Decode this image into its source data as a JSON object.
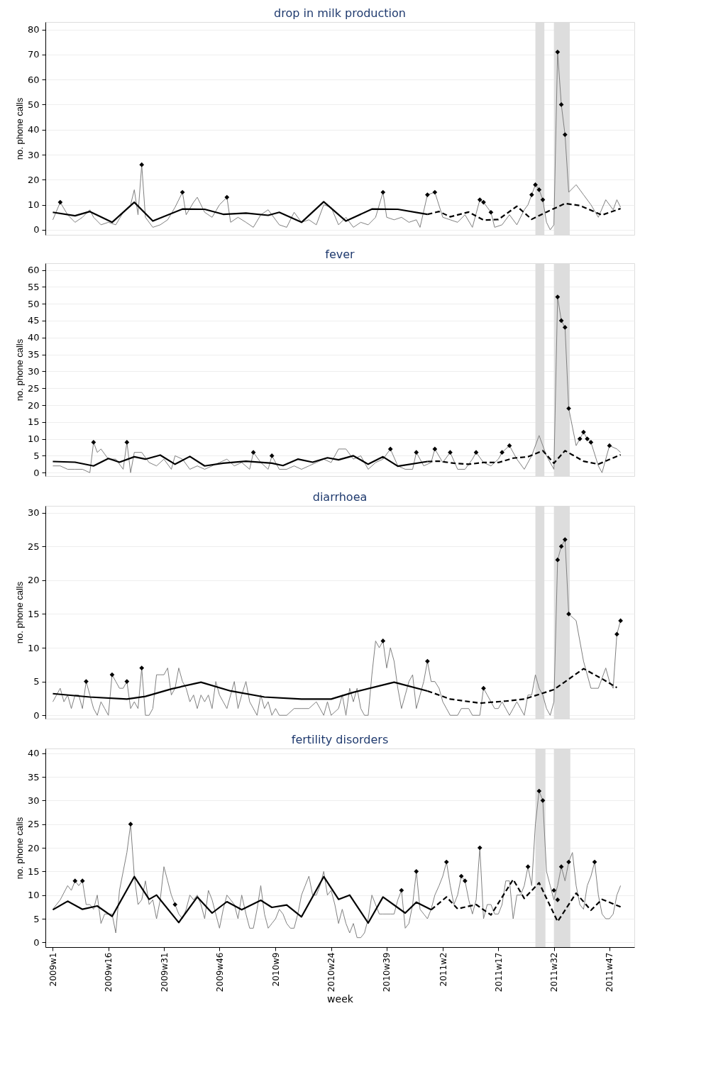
{
  "chart_data": [
    {
      "type": "line",
      "title": "drop in milk production",
      "ylabel": "no. phone calls",
      "tick_labels": "y",
      "grid": "y",
      "xlim": [
        "2008-12-18",
        "2012-01-05"
      ],
      "ylim": [
        -2,
        83
      ],
      "yticks": [
        0,
        10,
        20,
        30,
        40,
        50,
        60,
        70,
        80
      ],
      "bands": [
        {
          "axis": "x",
          "from": "2011-07-02",
          "to": "2011-07-19",
          "color": "#dddddd"
        },
        {
          "axis": "x",
          "from": "2011-08-06",
          "to": "2011-09-05",
          "color": "#dddddd"
        }
      ],
      "series": [
        {
          "color": "#808080",
          "line_style": "solid",
          "x": [
            "2009-01-01",
            "2009-01-15",
            "2009-01-29",
            "2009-02-12",
            "2009-02-26",
            "2009-03-12",
            "2009-03-19",
            "2009-04-02",
            "2009-04-16",
            "2009-04-30",
            "2009-05-14",
            "2009-05-28",
            "2009-06-04",
            "2009-06-11",
            "2009-06-18",
            "2009-06-25",
            "2009-07-09",
            "2009-07-23",
            "2009-08-06",
            "2009-08-20",
            "2009-09-03",
            "2009-09-10",
            "2009-09-24",
            "2009-10-01",
            "2009-10-15",
            "2009-10-29",
            "2009-11-12",
            "2009-11-26",
            "2009-12-03",
            "2009-12-17",
            "2010-01-01",
            "2010-01-15",
            "2010-01-29",
            "2010-02-12",
            "2010-02-19",
            "2010-03-05",
            "2010-03-19",
            "2010-04-02",
            "2010-04-16",
            "2010-04-30",
            "2010-05-14",
            "2010-05-28",
            "2010-06-11",
            "2010-06-25",
            "2010-07-09",
            "2010-07-23",
            "2010-08-06",
            "2010-08-20",
            "2010-09-03",
            "2010-09-17",
            "2010-09-24",
            "2010-10-08",
            "2010-10-22",
            "2010-11-05",
            "2010-11-19",
            "2010-11-26",
            "2010-12-10",
            "2010-12-24",
            "2011-01-08",
            "2011-01-22",
            "2011-02-05",
            "2011-02-19",
            "2011-03-05",
            "2011-03-19",
            "2011-03-26",
            "2011-04-09",
            "2011-04-16",
            "2011-04-30",
            "2011-05-14",
            "2011-05-28",
            "2011-06-11",
            "2011-06-18",
            "2011-06-25",
            "2011-07-02",
            "2011-07-09",
            "2011-07-16",
            "2011-07-23",
            "2011-07-30",
            "2011-08-06",
            "2011-08-13",
            "2011-08-20",
            "2011-08-27",
            "2011-09-03",
            "2011-09-17",
            "2011-10-01",
            "2011-10-15",
            "2011-10-29",
            "2011-11-12",
            "2011-11-26",
            "2011-12-03",
            "2011-12-10"
          ],
          "values": [
            4,
            11,
            6,
            3,
            5,
            8,
            5,
            2,
            3,
            2,
            7,
            10,
            16,
            6,
            26,
            5,
            1,
            2,
            4,
            9,
            15,
            6,
            11,
            13,
            7,
            5,
            10,
            13,
            3,
            5,
            3,
            1,
            6,
            8,
            6,
            2,
            1,
            7,
            3,
            4,
            2,
            10,
            9,
            2,
            5,
            1,
            3,
            2,
            5,
            15,
            5,
            4,
            5,
            3,
            4,
            1,
            14,
            15,
            5,
            4,
            3,
            6,
            1,
            12,
            11,
            7,
            1,
            2,
            6,
            2,
            8,
            10,
            14,
            18,
            16,
            12,
            3,
            0,
            2,
            71,
            50,
            38,
            15,
            18,
            14,
            10,
            5,
            12,
            8,
            12,
            9
          ]
        },
        {
          "color": "#000000",
          "line_style": "solid",
          "x": [
            "2009-01-01",
            "2009-02-12",
            "2009-03-12",
            "2009-04-23",
            "2009-06-04",
            "2009-07-09",
            "2009-09-03",
            "2009-10-15",
            "2009-11-19",
            "2010-01-01",
            "2010-02-12",
            "2010-03-05",
            "2010-04-16",
            "2010-05-28",
            "2010-07-09",
            "2010-08-27",
            "2010-10-15",
            "2010-12-10"
          ],
          "values": [
            7,
            5.6,
            7.3,
            3,
            11,
            3.5,
            8.3,
            8.2,
            6.2,
            6.7,
            5.8,
            7,
            3,
            11.2,
            3.5,
            8.3,
            8.2,
            6.2
          ]
        },
        {
          "color": "#000000",
          "line_style": "dashed",
          "x": [
            "2010-12-10",
            "2011-01-01",
            "2011-01-22",
            "2011-02-26",
            "2011-03-26",
            "2011-04-23",
            "2011-05-28",
            "2011-06-25",
            "2011-07-23",
            "2011-08-27",
            "2011-09-24",
            "2011-11-05",
            "2011-12-10"
          ],
          "values": [
            6.2,
            7.3,
            5.2,
            7.1,
            3.9,
            4.1,
            9.4,
            4.2,
            7.1,
            10.5,
            9.7,
            5.9,
            8.5
          ]
        },
        {
          "type": "scatter",
          "color": "#000000",
          "marker": "diamond",
          "x": [
            "2009-01-15",
            "2009-06-18",
            "2009-09-03",
            "2009-11-26",
            "2010-09-17",
            "2010-12-10",
            "2010-12-24",
            "2011-03-19",
            "2011-03-26",
            "2011-04-09",
            "2011-06-25",
            "2011-07-02",
            "2011-07-09",
            "2011-07-16",
            "2011-08-13",
            "2011-08-20",
            "2011-08-27"
          ],
          "values": [
            11,
            26,
            15,
            13,
            15,
            14,
            15,
            12,
            11,
            7,
            14,
            18,
            16,
            12,
            71,
            50,
            38
          ]
        }
      ]
    },
    {
      "type": "line",
      "title": "fever",
      "ylabel": "no. phone calls",
      "tick_labels": "y",
      "grid": "y",
      "xlim": [
        "2008-12-18",
        "2012-01-05"
      ],
      "ylim": [
        -1,
        62
      ],
      "yticks": [
        0,
        5,
        10,
        15,
        20,
        25,
        30,
        35,
        40,
        45,
        50,
        55,
        60
      ],
      "bands": [
        {
          "axis": "x",
          "from": "2011-07-02",
          "to": "2011-07-19",
          "color": "#dddddd"
        },
        {
          "axis": "x",
          "from": "2011-08-06",
          "to": "2011-09-05",
          "color": "#dddddd"
        }
      ],
      "series": [
        {
          "color": "#808080",
          "line_style": "solid",
          "x": [
            "2009-01-01",
            "2009-01-15",
            "2009-01-29",
            "2009-02-12",
            "2009-02-26",
            "2009-03-12",
            "2009-03-19",
            "2009-03-26",
            "2009-04-02",
            "2009-04-16",
            "2009-04-30",
            "2009-05-14",
            "2009-05-21",
            "2009-05-28",
            "2009-06-04",
            "2009-06-18",
            "2009-07-02",
            "2009-07-16",
            "2009-07-30",
            "2009-08-13",
            "2009-08-20",
            "2009-09-03",
            "2009-09-17",
            "2009-10-01",
            "2009-10-15",
            "2009-10-29",
            "2009-11-12",
            "2009-11-26",
            "2009-12-10",
            "2009-12-24",
            "2010-01-08",
            "2010-01-15",
            "2010-01-29",
            "2010-02-12",
            "2010-02-19",
            "2010-03-05",
            "2010-03-19",
            "2010-04-02",
            "2010-04-16",
            "2010-04-30",
            "2010-05-14",
            "2010-05-28",
            "2010-06-11",
            "2010-06-25",
            "2010-07-09",
            "2010-07-23",
            "2010-08-06",
            "2010-08-20",
            "2010-09-03",
            "2010-09-17",
            "2010-10-01",
            "2010-10-15",
            "2010-10-29",
            "2010-11-12",
            "2010-11-19",
            "2010-12-03",
            "2010-12-17",
            "2010-12-24",
            "2011-01-08",
            "2011-01-22",
            "2011-02-05",
            "2011-02-19",
            "2011-03-05",
            "2011-03-12",
            "2011-03-26",
            "2011-04-09",
            "2011-04-23",
            "2011-04-30",
            "2011-05-14",
            "2011-05-28",
            "2011-06-11",
            "2011-06-25",
            "2011-07-09",
            "2011-07-23",
            "2011-08-06",
            "2011-08-13",
            "2011-08-20",
            "2011-08-27",
            "2011-09-03",
            "2011-09-17",
            "2011-09-24",
            "2011-10-01",
            "2011-10-08",
            "2011-10-15",
            "2011-10-29",
            "2011-11-05",
            "2011-11-19",
            "2011-12-03",
            "2011-12-10"
          ],
          "values": [
            2,
            2,
            1,
            1,
            1,
            0,
            9,
            6,
            7,
            4,
            4,
            1,
            9,
            0,
            6,
            6,
            3,
            2,
            4,
            1,
            5,
            4,
            1,
            2,
            1,
            2,
            3,
            4,
            2,
            3,
            1,
            6,
            3,
            1,
            5,
            1,
            1,
            2,
            1,
            2,
            3,
            4,
            3,
            7,
            7,
            4,
            5,
            1,
            3,
            4,
            7,
            2,
            1,
            1,
            6,
            2,
            3,
            7,
            3,
            6,
            1,
            1,
            4,
            6,
            3,
            2,
            4,
            6,
            8,
            4,
            1,
            5,
            11,
            5,
            1,
            52,
            45,
            43,
            19,
            8,
            10,
            12,
            10,
            9,
            2,
            0,
            8,
            7,
            6
          ]
        },
        {
          "color": "#000000",
          "line_style": "solid",
          "x": [
            "2009-01-01",
            "2009-02-12",
            "2009-03-19",
            "2009-04-16",
            "2009-05-07",
            "2009-06-04",
            "2009-06-25",
            "2009-07-23",
            "2009-08-20",
            "2009-09-17",
            "2009-10-15",
            "2009-11-19",
            "2010-01-01",
            "2010-02-19",
            "2010-03-12",
            "2010-04-09",
            "2010-05-07",
            "2010-06-04",
            "2010-06-25",
            "2010-07-23",
            "2010-08-20",
            "2010-09-17",
            "2010-10-15",
            "2010-12-10"
          ],
          "values": [
            3.3,
            3.1,
            2,
            4.2,
            3.1,
            4.7,
            4,
            5.2,
            2.5,
            4.8,
            2,
            2.8,
            3.4,
            2.8,
            2.1,
            4,
            3.1,
            4.4,
            3.8,
            5,
            2.5,
            4.7,
            1.9,
            3.3
          ]
        },
        {
          "color": "#000000",
          "line_style": "dashed",
          "x": [
            "2010-12-10",
            "2011-01-01",
            "2011-01-29",
            "2011-02-26",
            "2011-03-26",
            "2011-04-23",
            "2011-05-21",
            "2011-06-18",
            "2011-07-16",
            "2011-08-06",
            "2011-08-27",
            "2011-10-01",
            "2011-10-29",
            "2011-12-10"
          ],
          "values": [
            3.3,
            3.4,
            2.8,
            2.5,
            3,
            3,
            4.3,
            4.7,
            6.5,
            2.8,
            6.5,
            3.4,
            2.5,
            5.3
          ]
        },
        {
          "type": "scatter",
          "color": "#000000",
          "marker": "diamond",
          "x": [
            "2009-03-19",
            "2009-05-21",
            "2010-01-15",
            "2010-02-19",
            "2010-10-01",
            "2010-11-19",
            "2010-12-24",
            "2011-01-22",
            "2011-03-12",
            "2011-04-30",
            "2011-05-14",
            "2011-08-13",
            "2011-08-20",
            "2011-08-27",
            "2011-09-03",
            "2011-09-24",
            "2011-10-01",
            "2011-10-08",
            "2011-10-15",
            "2011-11-19"
          ],
          "values": [
            9,
            9,
            6,
            5,
            7,
            6,
            7,
            6,
            6,
            6,
            8,
            52,
            45,
            43,
            19,
            10,
            12,
            10,
            9,
            8
          ]
        }
      ]
    },
    {
      "type": "line",
      "title": "diarrhoea",
      "ylabel": "no. phone calls",
      "tick_labels": "y",
      "grid": "y",
      "xlim": [
        "2008-12-18",
        "2012-01-05"
      ],
      "ylim": [
        -0.5,
        31
      ],
      "yticks": [
        0,
        5,
        10,
        15,
        20,
        25,
        30
      ],
      "bands": [
        {
          "axis": "x",
          "from": "2011-07-02",
          "to": "2011-07-19",
          "color": "#dddddd"
        },
        {
          "axis": "x",
          "from": "2011-08-06",
          "to": "2011-09-05",
          "color": "#dddddd"
        }
      ],
      "series": [
        {
          "color": "#808080",
          "line_style": "solid",
          "x": [
            "2009-01-01",
            "2009-01-08",
            "2009-01-15",
            "2009-01-22",
            "2009-01-29",
            "2009-02-05",
            "2009-02-12",
            "2009-02-19",
            "2009-02-26",
            "2009-03-05",
            "2009-03-12",
            "2009-03-19",
            "2009-03-26",
            "2009-04-02",
            "2009-04-09",
            "2009-04-16",
            "2009-04-23",
            "2009-04-30",
            "2009-05-07",
            "2009-05-14",
            "2009-05-21",
            "2009-05-28",
            "2009-06-04",
            "2009-06-11",
            "2009-06-18",
            "2009-06-25",
            "2009-07-02",
            "2009-07-09",
            "2009-07-16",
            "2009-07-23",
            "2009-07-30",
            "2009-08-06",
            "2009-08-13",
            "2009-08-20",
            "2009-08-27",
            "2009-09-03",
            "2009-09-10",
            "2009-09-17",
            "2009-09-24",
            "2009-10-01",
            "2009-10-08",
            "2009-10-15",
            "2009-10-22",
            "2009-10-29",
            "2009-11-05",
            "2009-11-12",
            "2009-11-19",
            "2009-11-26",
            "2009-12-03",
            "2009-12-10",
            "2009-12-17",
            "2009-12-24",
            "2010-01-01",
            "2010-01-08",
            "2010-01-15",
            "2010-01-22",
            "2010-01-29",
            "2010-02-05",
            "2010-02-12",
            "2010-02-19",
            "2010-02-26",
            "2010-03-05",
            "2010-03-19",
            "2010-04-02",
            "2010-04-16",
            "2010-04-30",
            "2010-05-14",
            "2010-05-21",
            "2010-05-28",
            "2010-06-04",
            "2010-06-11",
            "2010-06-25",
            "2010-07-02",
            "2010-07-09",
            "2010-07-16",
            "2010-07-23",
            "2010-07-30",
            "2010-08-06",
            "2010-08-13",
            "2010-08-20",
            "2010-08-27",
            "2010-09-03",
            "2010-09-10",
            "2010-09-17",
            "2010-09-24",
            "2010-10-01",
            "2010-10-08",
            "2010-10-15",
            "2010-10-22",
            "2010-10-29",
            "2010-11-05",
            "2010-11-12",
            "2010-11-19",
            "2010-11-26",
            "2010-12-03",
            "2010-12-10",
            "2010-12-17",
            "2010-12-24",
            "2011-01-01",
            "2011-01-08",
            "2011-01-15",
            "2011-01-22",
            "2011-02-05",
            "2011-02-12",
            "2011-02-26",
            "2011-03-05",
            "2011-03-19",
            "2011-03-26",
            "2011-04-02",
            "2011-04-09",
            "2011-04-16",
            "2011-04-23",
            "2011-04-30",
            "2011-05-07",
            "2011-05-14",
            "2011-05-21",
            "2011-05-28",
            "2011-06-04",
            "2011-06-11",
            "2011-06-18",
            "2011-06-25",
            "2011-07-02",
            "2011-07-09",
            "2011-07-16",
            "2011-07-23",
            "2011-07-30",
            "2011-08-06",
            "2011-08-13",
            "2011-08-20",
            "2011-08-27",
            "2011-09-03",
            "2011-09-17",
            "2011-10-01",
            "2011-10-15",
            "2011-10-29",
            "2011-11-12",
            "2011-11-19",
            "2011-11-26",
            "2011-12-03",
            "2011-12-10"
          ],
          "values": [
            2,
            3,
            4,
            2,
            3,
            1,
            3,
            3,
            1,
            5,
            3,
            1,
            0,
            2,
            1,
            0,
            6,
            5,
            4,
            4,
            5,
            1,
            2,
            1,
            7,
            0,
            0,
            1,
            6,
            6,
            6,
            7,
            3,
            4,
            7,
            5,
            4,
            2,
            3,
            1,
            3,
            2,
            3,
            1,
            5,
            3,
            2,
            1,
            3,
            5,
            1,
            3,
            5,
            2,
            1,
            0,
            3,
            1,
            2,
            0,
            1,
            0,
            0,
            1,
            1,
            1,
            2,
            1,
            0,
            2,
            0,
            1,
            3,
            0,
            4,
            2,
            4,
            1,
            0,
            0,
            6,
            11,
            10,
            11,
            7,
            10,
            8,
            4,
            1,
            3,
            5,
            6,
            1,
            3,
            5,
            8,
            5,
            5,
            4,
            2,
            1,
            0,
            0,
            1,
            1,
            0,
            0,
            4,
            3,
            2,
            1,
            1,
            2,
            1,
            0,
            1,
            2,
            1,
            0,
            3,
            3,
            6,
            4,
            3,
            1,
            0,
            2,
            23,
            25,
            26,
            15,
            14,
            8,
            4,
            4,
            7,
            5,
            4,
            12,
            14
          ]
        },
        {
          "color": "#000000",
          "line_style": "solid",
          "x": [
            "2009-01-01",
            "2009-03-12",
            "2009-05-21",
            "2009-06-25",
            "2009-08-13",
            "2009-10-08",
            "2009-12-03",
            "2010-02-05",
            "2010-04-16",
            "2010-06-11",
            "2010-07-23",
            "2010-10-08",
            "2010-12-10"
          ],
          "values": [
            3.2,
            2.7,
            2.4,
            2.8,
            3.9,
            4.9,
            3.6,
            2.7,
            2.4,
            2.4,
            3.4,
            4.9,
            3.6
          ]
        },
        {
          "color": "#000000",
          "line_style": "dashed",
          "x": [
            "2010-12-10",
            "2011-01-22",
            "2011-03-19",
            "2011-05-07",
            "2011-06-11",
            "2011-08-06",
            "2011-10-01",
            "2011-11-05",
            "2011-12-03"
          ],
          "values": [
            3.6,
            2.4,
            1.8,
            2.1,
            2.4,
            3.8,
            6.9,
            5.4,
            4.1
          ]
        },
        {
          "type": "scatter",
          "color": "#000000",
          "marker": "diamond",
          "x": [
            "2009-03-05",
            "2009-04-23",
            "2009-05-21",
            "2009-06-18",
            "2010-09-17",
            "2010-12-10",
            "2011-03-26",
            "2011-08-13",
            "2011-08-20",
            "2011-08-27",
            "2011-09-03",
            "2011-12-03",
            "2011-12-10"
          ],
          "values": [
            5,
            6,
            5,
            7,
            11,
            8,
            4,
            23,
            25,
            26,
            15,
            12,
            14
          ]
        }
      ]
    },
    {
      "type": "line",
      "title": "fertility disorders",
      "ylabel": "no. phone calls",
      "xlabel": "week",
      "grid": "y",
      "xlim": [
        "2008-12-18",
        "2012-01-05"
      ],
      "xticks": [
        {
          "value": "2009-01-01",
          "label": "2009w1"
        },
        {
          "value": "2009-04-16",
          "label": "2009w16"
        },
        {
          "value": "2009-07-30",
          "label": "2009w31"
        },
        {
          "value": "2009-11-12",
          "label": "2009w46"
        },
        {
          "value": "2010-02-26",
          "label": "2010w9"
        },
        {
          "value": "2010-06-11",
          "label": "2010w24"
        },
        {
          "value": "2010-09-24",
          "label": "2010w39"
        },
        {
          "value": "2011-01-08",
          "label": "2011w2"
        },
        {
          "value": "2011-04-23",
          "label": "2011w17"
        },
        {
          "value": "2011-08-06",
          "label": "2011w32"
        },
        {
          "value": "2011-11-19",
          "label": "2011w47"
        }
      ],
      "ylim": [
        -1,
        41
      ],
      "yticks": [
        0,
        5,
        10,
        15,
        20,
        25,
        30,
        35,
        40
      ],
      "bands": [
        {
          "axis": "x",
          "from": "2011-07-02",
          "to": "2011-07-21",
          "color": "#dddddd"
        },
        {
          "axis": "x",
          "from": "2011-08-06",
          "to": "2011-09-06",
          "color": "#dddddd"
        }
      ],
      "series": [
        {
          "color": "#808080",
          "line_style": "solid",
          "x": [
            "2009-01-01",
            "2009-01-15",
            "2009-01-29",
            "2009-02-05",
            "2009-02-12",
            "2009-02-19",
            "2009-02-26",
            "2009-03-05",
            "2009-03-12",
            "2009-03-19",
            "2009-03-26",
            "2009-04-02",
            "2009-04-09",
            "2009-04-16",
            "2009-04-23",
            "2009-04-30",
            "2009-05-07",
            "2009-05-14",
            "2009-05-21",
            "2009-05-28",
            "2009-06-04",
            "2009-06-11",
            "2009-06-18",
            "2009-06-25",
            "2009-07-02",
            "2009-07-09",
            "2009-07-16",
            "2009-07-23",
            "2009-07-30",
            "2009-08-06",
            "2009-08-13",
            "2009-08-20",
            "2009-08-27",
            "2009-09-03",
            "2009-09-10",
            "2009-09-17",
            "2009-09-24",
            "2009-10-01",
            "2009-10-08",
            "2009-10-15",
            "2009-10-22",
            "2009-10-29",
            "2009-11-05",
            "2009-11-12",
            "2009-11-19",
            "2009-11-26",
            "2009-12-03",
            "2009-12-10",
            "2009-12-17",
            "2009-12-24",
            "2010-01-01",
            "2010-01-08",
            "2010-01-15",
            "2010-01-22",
            "2010-01-29",
            "2010-02-05",
            "2010-02-12",
            "2010-02-19",
            "2010-02-26",
            "2010-03-05",
            "2010-03-12",
            "2010-03-19",
            "2010-03-26",
            "2010-04-02",
            "2010-04-09",
            "2010-04-16",
            "2010-04-23",
            "2010-04-30",
            "2010-05-07",
            "2010-05-14",
            "2010-05-21",
            "2010-05-28",
            "2010-06-04",
            "2010-06-11",
            "2010-06-18",
            "2010-06-25",
            "2010-07-02",
            "2010-07-09",
            "2010-07-16",
            "2010-07-23",
            "2010-07-30",
            "2010-08-06",
            "2010-08-13",
            "2010-08-20",
            "2010-08-27",
            "2010-09-03",
            "2010-09-10",
            "2010-09-17",
            "2010-09-24",
            "2010-10-01",
            "2010-10-08",
            "2010-10-15",
            "2010-10-22",
            "2010-10-29",
            "2010-11-05",
            "2010-11-12",
            "2010-11-19",
            "2010-11-26",
            "2010-12-03",
            "2010-12-10",
            "2010-12-17",
            "2010-12-24",
            "2011-01-01",
            "2011-01-08",
            "2011-01-15",
            "2011-01-22",
            "2011-01-29",
            "2011-02-05",
            "2011-02-12",
            "2011-02-19",
            "2011-02-26",
            "2011-03-05",
            "2011-03-12",
            "2011-03-19",
            "2011-03-26",
            "2011-04-02",
            "2011-04-09",
            "2011-04-16",
            "2011-04-23",
            "2011-04-30",
            "2011-05-07",
            "2011-05-14",
            "2011-05-21",
            "2011-05-28",
            "2011-06-04",
            "2011-06-11",
            "2011-06-18",
            "2011-06-25",
            "2011-07-02",
            "2011-07-09",
            "2011-07-16",
            "2011-07-23",
            "2011-07-30",
            "2011-08-06",
            "2011-08-13",
            "2011-08-20",
            "2011-08-27",
            "2011-09-03",
            "2011-09-10",
            "2011-09-17",
            "2011-09-24",
            "2011-10-01",
            "2011-10-08",
            "2011-10-15",
            "2011-10-22",
            "2011-10-29",
            "2011-11-05",
            "2011-11-12",
            "2011-11-19",
            "2011-11-26",
            "2011-12-03",
            "2011-12-10"
          ],
          "values": [
            7,
            9,
            12,
            11,
            13,
            12,
            13,
            8,
            8,
            7,
            10,
            4,
            6,
            6,
            6,
            2,
            11,
            15,
            19,
            25,
            14,
            8,
            9,
            13,
            8,
            9,
            5,
            9,
            16,
            13,
            10,
            8,
            6,
            5,
            7,
            10,
            9,
            10,
            8,
            5,
            11,
            9,
            6,
            3,
            7,
            10,
            9,
            8,
            5,
            10,
            6,
            3,
            3,
            7,
            12,
            6,
            3,
            4,
            5,
            7,
            6,
            4,
            3,
            3,
            6,
            10,
            12,
            14,
            10,
            10,
            12,
            15,
            10,
            11,
            8,
            4,
            7,
            4,
            2,
            4,
            1,
            1,
            2,
            5,
            10,
            8,
            6,
            6,
            6,
            6,
            6,
            9,
            11,
            3,
            4,
            8,
            15,
            7,
            6,
            5,
            7,
            10,
            12,
            14,
            17,
            12,
            8,
            10,
            14,
            13,
            9,
            6,
            9,
            20,
            5,
            8,
            8,
            6,
            6,
            8,
            13,
            13,
            5,
            10,
            10,
            12,
            16,
            12,
            25,
            32,
            30,
            15,
            12,
            9,
            12,
            16,
            13,
            17,
            19,
            12,
            8,
            7,
            12,
            14,
            17,
            10,
            6,
            5,
            5,
            6,
            10,
            12
          ]
        },
        {
          "color": "#000000",
          "line_style": "solid",
          "x": [
            "2009-01-01",
            "2009-01-29",
            "2009-02-26",
            "2009-03-26",
            "2009-04-23",
            "2009-06-04",
            "2009-07-02",
            "2009-07-16",
            "2009-08-27",
            "2009-10-01",
            "2009-10-29",
            "2009-11-26",
            "2009-12-24",
            "2010-01-29",
            "2010-02-19",
            "2010-03-19",
            "2010-04-16",
            "2010-05-28",
            "2010-06-25",
            "2010-07-16",
            "2010-08-20",
            "2010-09-17",
            "2010-10-29",
            "2010-11-19",
            "2010-12-17"
          ],
          "values": [
            6.9,
            8.7,
            7,
            7.7,
            5.5,
            13.9,
            9.1,
            10,
            4.2,
            9.6,
            6.2,
            8.6,
            6.9,
            8.9,
            7.4,
            7.9,
            5.4,
            13.9,
            9.1,
            10,
            4.1,
            9.6,
            6.2,
            8.5,
            6.9
          ]
        },
        {
          "color": "#000000",
          "line_style": "dashed",
          "x": [
            "2010-12-17",
            "2011-01-15",
            "2011-02-05",
            "2011-03-12",
            "2011-04-09",
            "2011-05-21",
            "2011-06-11",
            "2011-07-09",
            "2011-08-13",
            "2011-09-17",
            "2011-10-15",
            "2011-11-05",
            "2011-12-10"
          ],
          "values": [
            6.9,
            9.6,
            7.1,
            8,
            5.8,
            13.3,
            9.3,
            12.6,
            4.4,
            10.4,
            6.8,
            9.1,
            7.5
          ]
        },
        {
          "type": "scatter",
          "color": "#000000",
          "marker": "diamond",
          "x": [
            "2009-02-12",
            "2009-02-26",
            "2009-05-28",
            "2009-08-20",
            "2010-10-22",
            "2010-11-19",
            "2011-01-15",
            "2011-02-12",
            "2011-02-19",
            "2011-03-19",
            "2011-06-18",
            "2011-07-09",
            "2011-07-16",
            "2011-08-06",
            "2011-08-13",
            "2011-08-20",
            "2011-09-03",
            "2011-10-22"
          ],
          "values": [
            13,
            13,
            25,
            8,
            11,
            15,
            17,
            14,
            13,
            20,
            16,
            32,
            30,
            11,
            9,
            16,
            17,
            17
          ]
        }
      ]
    }
  ]
}
